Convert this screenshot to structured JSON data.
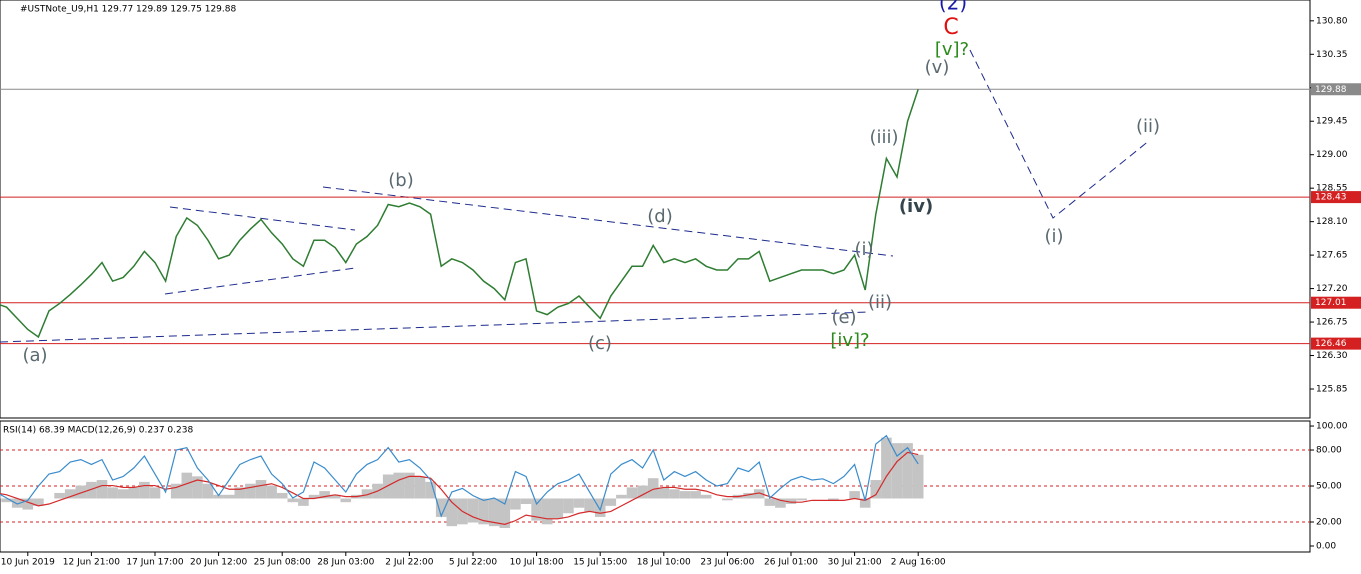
{
  "chart_data": [
    {
      "type": "line",
      "title": "#USTNote_U9,H1  129.77 129.89 129.75 129.88",
      "categories": [
        null,
        null,
        null,
        "10 Jun 2019",
        null,
        null,
        null,
        null,
        null,
        "12 Jun 21:00",
        null,
        null,
        null,
        null,
        null,
        "17 Jun 17:00",
        null,
        null,
        null,
        null,
        null,
        "20 Jun 12:00",
        null,
        null,
        null,
        null,
        null,
        "25 Jun 08:00",
        null,
        null,
        null,
        null,
        null,
        "28 Jun 03:00",
        null,
        null,
        null,
        null,
        null,
        "2 Jul 22:00",
        null,
        null,
        null,
        null,
        null,
        "5 Jul 22:00",
        null,
        null,
        null,
        null,
        null,
        "10 Jul 18:00",
        null,
        null,
        null,
        null,
        null,
        "15 Jul 15:00",
        null,
        null,
        null,
        null,
        null,
        "18 Jul 10:00",
        null,
        null,
        null,
        null,
        null,
        "23 Jul 06:00",
        null,
        null,
        null,
        null,
        null,
        "26 Jul 01:00",
        null,
        null,
        null,
        null,
        null,
        "30 Jul 21:00",
        null,
        null,
        null,
        null,
        null,
        "2 Aug 16:00"
      ],
      "series": [
        {
          "name": "USTNote_U9",
          "color": "#2e7d32",
          "values": [
            127.0,
            126.95,
            126.8,
            126.65,
            126.55,
            126.9,
            127.0,
            127.12,
            127.25,
            127.39,
            127.55,
            127.3,
            127.35,
            127.5,
            127.7,
            127.55,
            127.3,
            127.9,
            128.15,
            128.05,
            127.85,
            127.6,
            127.65,
            127.85,
            128.0,
            128.13,
            127.95,
            127.8,
            127.6,
            127.5,
            127.85,
            127.85,
            127.75,
            127.55,
            127.8,
            127.9,
            128.05,
            128.33,
            128.3,
            128.35,
            128.3,
            128.2,
            127.5,
            127.6,
            127.55,
            127.45,
            127.3,
            127.2,
            127.05,
            127.55,
            127.6,
            126.9,
            126.85,
            126.95,
            127.0,
            127.1,
            126.95,
            126.8,
            127.1,
            127.3,
            127.5,
            127.5,
            127.78,
            127.55,
            127.6,
            127.55,
            127.6,
            127.5,
            127.45,
            127.45,
            127.6,
            127.6,
            127.7,
            127.3,
            127.35,
            127.4,
            127.45,
            127.45,
            127.45,
            127.4,
            127.45,
            127.65,
            127.18,
            128.2,
            128.95,
            128.7,
            129.45,
            129.88
          ]
        }
      ],
      "ylim": [
        125.46,
        131.08
      ],
      "yticks": [
        {
          "value": 130.8,
          "label": "130.80"
        },
        130.35,
        {
          "value": 129.9,
          "label": "129.90"
        },
        129.45,
        {
          "value": 129.0,
          "label": "129.00"
        },
        128.55,
        {
          "value": 128.1,
          "label": "128.10"
        },
        127.65,
        {
          "value": 127.2,
          "label": "127.20"
        },
        126.75,
        {
          "value": 126.3,
          "label": "126.30"
        },
        125.85
      ],
      "levels": [
        {
          "value": 129.88,
          "color": "#8a8a8a"
        },
        {
          "value": 128.43,
          "color": "#d42020"
        },
        {
          "value": 127.01,
          "color": "#d42020"
        },
        {
          "value": 126.46,
          "color": "#d42020"
        }
      ],
      "annotations": [
        {
          "text": "(2)",
          "color": "#1a1aa8"
        },
        {
          "text": "C",
          "color": "#e01010"
        },
        {
          "text": "[v]?",
          "color": "#2a8a1a"
        },
        {
          "text": "(v)",
          "color": "#5a6a70"
        },
        {
          "text": "(iii)",
          "color": "#5a6a70"
        },
        {
          "text": "(iv)",
          "color": "#34444c"
        },
        {
          "text": "(i)",
          "color": "#5a6a70"
        },
        {
          "text": "(ii)",
          "color": "#5a6a70"
        },
        {
          "text": "(e)",
          "color": "#5a6a70"
        },
        {
          "text": "[iv]?",
          "color": "#2a8a1a"
        },
        {
          "text": "(d)",
          "color": "#5a6a70"
        },
        {
          "text": "(b)",
          "color": "#5a6a70"
        },
        {
          "text": "(a)",
          "color": "#5a6a70"
        },
        {
          "text": "(c)",
          "color": "#5a6a70"
        },
        {
          "text": "(i)",
          "color": "#5a6a70"
        },
        {
          "text": "(ii)",
          "color": "#5a6a70"
        }
      ]
    },
    {
      "type": "indicator",
      "title": "RSI(14) 68.39 MACD(12,26,9) 0.237 0.238",
      "series": [
        {
          "name": "MACD",
          "color": "#c4c4c4",
          "axis": "y2",
          "values": [
            0.02,
            -0.02,
            -0.05,
            -0.06,
            -0.04,
            0.0,
            0.03,
            0.05,
            0.07,
            0.09,
            0.1,
            0.06,
            0.05,
            0.06,
            0.09,
            0.06,
            0.0,
            0.08,
            0.14,
            0.12,
            0.08,
            0.02,
            0.02,
            0.06,
            0.08,
            0.1,
            0.07,
            0.03,
            -0.02,
            -0.04,
            0.02,
            0.04,
            0.02,
            -0.02,
            0.02,
            0.05,
            0.08,
            0.13,
            0.14,
            0.14,
            0.12,
            0.09,
            -0.1,
            -0.15,
            -0.14,
            -0.13,
            -0.14,
            -0.15,
            -0.16,
            -0.06,
            -0.03,
            -0.12,
            -0.14,
            -0.11,
            -0.08,
            -0.05,
            -0.07,
            -0.1,
            -0.04,
            0.02,
            0.06,
            0.07,
            0.11,
            0.06,
            0.05,
            0.04,
            0.04,
            0.02,
            0.0,
            -0.01,
            0.02,
            0.03,
            0.05,
            -0.04,
            -0.05,
            -0.03,
            -0.01,
            0.0,
            0.0,
            -0.01,
            0.0,
            0.04,
            -0.05,
            0.1,
            0.33,
            0.3,
            0.3,
            0.237
          ]
        },
        {
          "name": "Signal",
          "color": "#d42a2a",
          "axis": "y2",
          "values": [
            0.03,
            0.02,
            0.0,
            -0.02,
            -0.04,
            -0.03,
            -0.01,
            0.01,
            0.03,
            0.05,
            0.07,
            0.07,
            0.06,
            0.06,
            0.07,
            0.07,
            0.05,
            0.06,
            0.08,
            0.1,
            0.09,
            0.07,
            0.05,
            0.05,
            0.06,
            0.07,
            0.08,
            0.06,
            0.03,
            0.0,
            0.0,
            0.01,
            0.02,
            0.01,
            0.01,
            0.02,
            0.04,
            0.07,
            0.1,
            0.12,
            0.12,
            0.11,
            0.05,
            -0.02,
            -0.07,
            -0.1,
            -0.12,
            -0.13,
            -0.14,
            -0.12,
            -0.09,
            -0.1,
            -0.11,
            -0.11,
            -0.1,
            -0.08,
            -0.07,
            -0.08,
            -0.07,
            -0.04,
            -0.01,
            0.02,
            0.05,
            0.06,
            0.06,
            0.05,
            0.05,
            0.04,
            0.02,
            0.01,
            0.01,
            0.02,
            0.03,
            0.01,
            -0.01,
            -0.02,
            -0.02,
            -0.01,
            -0.01,
            -0.01,
            -0.01,
            0.0,
            -0.01,
            0.02,
            0.12,
            0.2,
            0.25,
            0.238
          ]
        },
        {
          "name": "RSI(14)",
          "color": "#3a8ccc",
          "values": [
            45,
            40,
            35,
            38,
            50,
            60,
            62,
            70,
            72,
            68,
            72,
            55,
            58,
            65,
            75,
            60,
            45,
            80,
            82,
            65,
            55,
            42,
            55,
            68,
            72,
            75,
            60,
            52,
            40,
            45,
            70,
            65,
            55,
            45,
            60,
            68,
            72,
            82,
            70,
            72,
            65,
            55,
            25,
            45,
            48,
            42,
            38,
            40,
            35,
            62,
            58,
            35,
            45,
            52,
            55,
            60,
            45,
            30,
            60,
            68,
            72,
            65,
            80,
            55,
            62,
            58,
            62,
            55,
            50,
            52,
            65,
            62,
            70,
            40,
            48,
            55,
            58,
            55,
            56,
            52,
            58,
            68,
            38,
            85,
            92,
            75,
            82,
            68.39
          ]
        }
      ],
      "ylim": [
        -5,
        104.2
      ],
      "yticks": [
        {
          "value": 100,
          "label": "100.00"
        },
        {
          "value": 80,
          "label": "80.00"
        },
        {
          "value": 50,
          "label": "50.00"
        },
        {
          "value": 20,
          "label": "20.00"
        },
        {
          "value": 0,
          "label": "0.00"
        }
      ],
      "levels": [
        80,
        50,
        20
      ],
      "y2lim": [
        -0.29,
        0.42
      ]
    }
  ]
}
